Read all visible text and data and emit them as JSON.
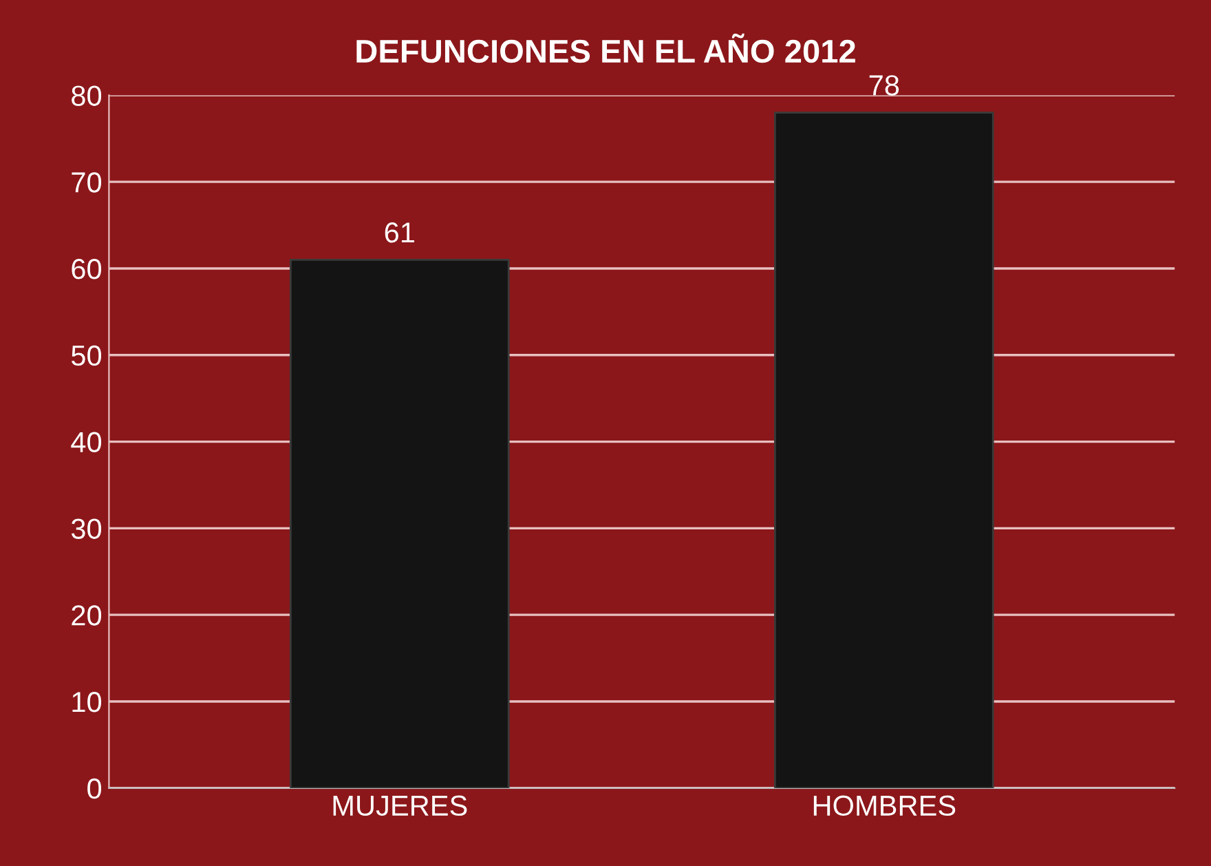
{
  "chart_data": {
    "type": "bar",
    "title": "DEFUNCIONES EN EL AÑO 2012",
    "categories": [
      "MUJERES",
      "HOMBRES"
    ],
    "values": [
      61,
      78
    ],
    "color": "#141414",
    "ylim": [
      0,
      80
    ],
    "yticks": [
      0,
      10,
      20,
      30,
      40,
      50,
      60,
      70,
      80
    ],
    "grid": "y",
    "data_labels": true
  }
}
